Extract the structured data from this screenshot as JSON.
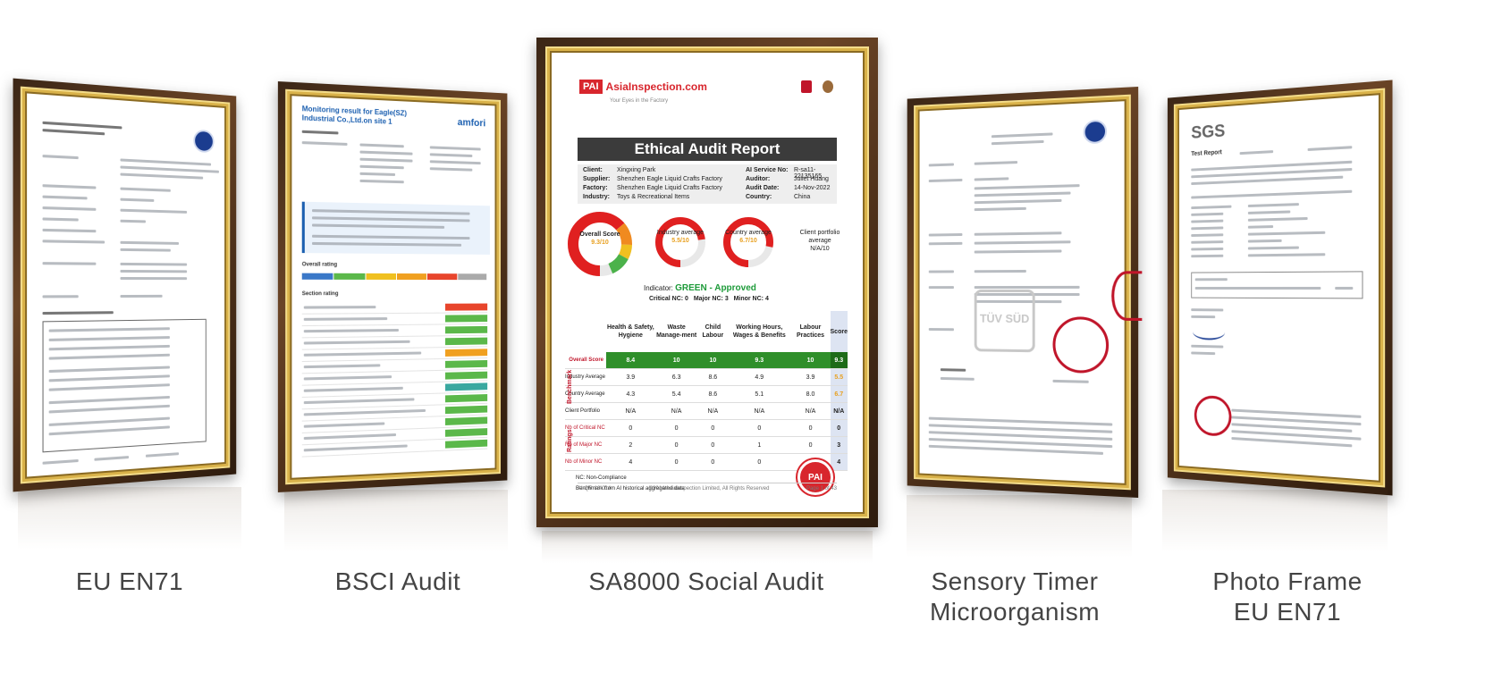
{
  "captions": {
    "c1": "EU EN71",
    "c2": "BSCI Audit",
    "c3": "SA8000 Social Audit",
    "c4_line1": "Sensory Timer",
    "c4_line2": "Microorganism",
    "c5_line1": "Photo Frame",
    "c5_line2": "EU EN71"
  },
  "bsci": {
    "title": "Monitoring result for Eagle(SZ) Industrial Co.,Ltd.on site 1",
    "brand": "amfori",
    "overall_rating": "Overall rating",
    "section_rating": "Section rating",
    "section_colors": [
      "#e8452c",
      "#5bb84a",
      "#5bb84a",
      "#5bb84a",
      "#f0a020",
      "#5bb84a",
      "#5bb84a",
      "#3aa8a0",
      "#5bb84a",
      "#5bb84a",
      "#5bb84a",
      "#5bb84a",
      "#5bb84a"
    ],
    "rating_colors": [
      "#3a78c8",
      "#5bb84a",
      "#f0c020",
      "#f0a020",
      "#e8452c",
      "#aaaaaa"
    ]
  },
  "sgs": {
    "brand": "SGS",
    "test_report": "Test Report"
  },
  "tuv": {
    "stamp": "TÜV SÜD"
  },
  "audit": {
    "logo_box": "PAI",
    "logo_text": "AsiaInspection.com",
    "tagline": "Your Eyes in the Factory",
    "title": "Ethical Audit Report",
    "info": {
      "client_k": "Client:",
      "client_v": "Xingxing Park",
      "supplier_k": "Supplier:",
      "supplier_v": "Shenzhen Eagle Liquid Crafts Factory",
      "factory_k": "Factory:",
      "factory_v": "Shenzhen Eagle Liquid Crafts Factory",
      "industry_k": "Industry:",
      "industry_v": "Toys & Recreational Items",
      "service_k": "AI Service No:",
      "service_v": "R-sa11-22135165",
      "auditor_k": "Auditor:",
      "auditor_v": "Juliet Huang",
      "date_k": "Audit Date:",
      "date_v": "14-Nov-2022",
      "country_k": "Country:",
      "country_v": "China"
    },
    "donuts": {
      "overall_label": "Overall Score",
      "overall_val": "9.3/10",
      "industry_label": "Industry average",
      "industry_val": "5.5/10",
      "country_label": "Country average",
      "country_val": "6.7/10",
      "client_label": "Client portfolio average",
      "client_val": "N/A/10"
    },
    "indicator_label": "Indicator:",
    "indicator_value": "GREEN - Approved",
    "critical": "Critical NC: 0",
    "major": "Major NC: 3",
    "minor": "Minor NC: 4",
    "columns": [
      "Health & Safety, Hygiene",
      "Waste Manage-ment",
      "Child Labour",
      "Working Hours, Wages & Benefits",
      "Labour Practices",
      "Score"
    ],
    "rows": [
      {
        "label": "Overall Score",
        "values": [
          "8.4",
          "10",
          "10",
          "9.3",
          "10",
          "9.3"
        ]
      },
      {
        "label": "Industry Average",
        "values": [
          "3.9",
          "6.3",
          "8.6",
          "4.9",
          "3.9",
          "5.5"
        ]
      },
      {
        "label": "Country Average",
        "values": [
          "4.3",
          "5.4",
          "8.6",
          "5.1",
          "8.0",
          "6.7"
        ]
      },
      {
        "label": "Client Portfolio",
        "values": [
          "N/A",
          "N/A",
          "N/A",
          "N/A",
          "N/A",
          "N/A"
        ]
      },
      {
        "label": "Nb of Critical NC",
        "values": [
          "0",
          "0",
          "0",
          "0",
          "0",
          "0"
        ]
      },
      {
        "label": "Nb of Major NC",
        "values": [
          "2",
          "0",
          "0",
          "1",
          "0",
          "3"
        ]
      },
      {
        "label": "Nb of Minor NC",
        "values": [
          "4",
          "0",
          "0",
          "0",
          "0",
          "4"
        ]
      }
    ],
    "benchmark_label": "Benchmark",
    "ratings_label": "Ratings",
    "note1": "NC: Non-Compliance",
    "note2": "Benchmark from AI historical aggregated data",
    "footer_left": "AI-QR-16-01A",
    "footer_center": "©2014 AsiaInspection Limited, All Rights Reserved",
    "footer_right": "Page 1 of 43",
    "seal": "PAI"
  }
}
